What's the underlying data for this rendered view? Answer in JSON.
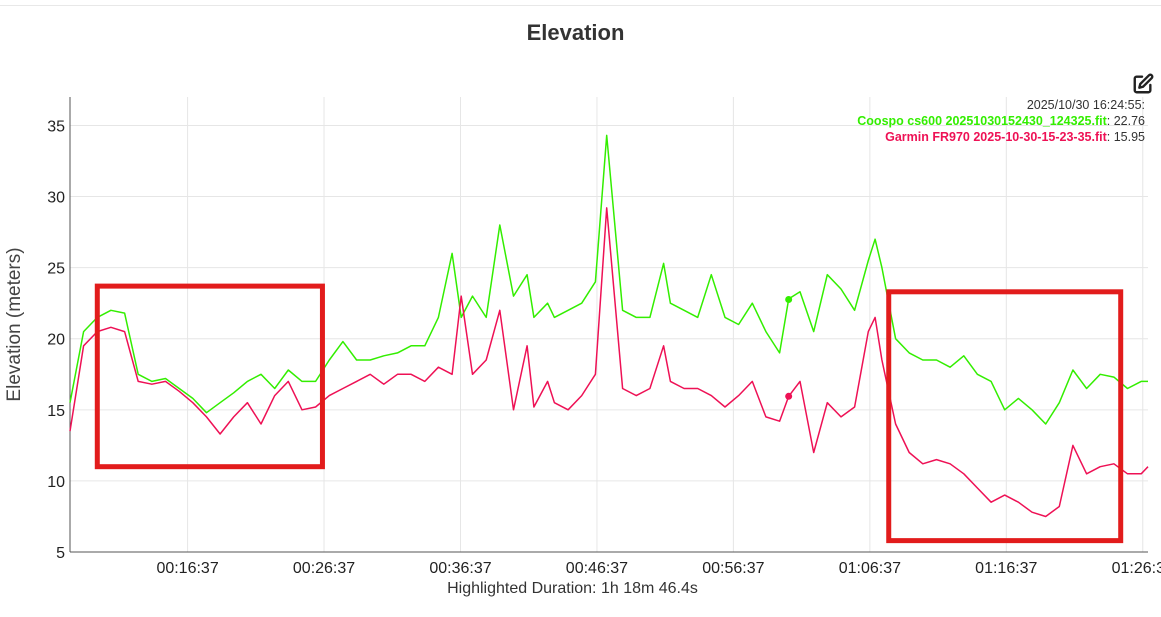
{
  "title": "Elevation",
  "tooltip": {
    "time": "2025/10/30 16:24:55:",
    "series": [
      {
        "name": "Coospo cs600 20251030152430_124325.fit",
        "value": "22.76"
      },
      {
        "name": "Garmin FR970 2025-10-30-15-23-35.fit",
        "value": "15.95"
      }
    ]
  },
  "footer": "Highlighted Duration: 1h 18m 46.4s",
  "icons": {
    "edit": "edit-icon"
  },
  "colors": {
    "series1": "#33ee00",
    "series2": "#ee1155",
    "highlight": "#e21c1c",
    "grid": "#e6e6e6"
  },
  "chart_data": {
    "type": "line",
    "ylabel": "Elevation (meters)",
    "xlabel": "",
    "ylim": [
      5,
      37
    ],
    "yticks": [
      5,
      10,
      15,
      20,
      25,
      30,
      35
    ],
    "xlim": [
      "00:08:00",
      "01:27:00"
    ],
    "xticks": [
      "00:16:37",
      "00:26:37",
      "00:36:37",
      "00:46:37",
      "00:56:37",
      "01:06:37",
      "01:16:37",
      "01:26:37"
    ],
    "grid": true,
    "legend": "top-right tooltip",
    "series": [
      {
        "name": "Coospo cs600 20251030152430_124325.fit",
        "x": [
          "00:08:00",
          "00:09:00",
          "00:10:00",
          "00:11:00",
          "00:12:00",
          "00:13:00",
          "00:14:00",
          "00:15:00",
          "00:16:00",
          "00:17:00",
          "00:18:00",
          "00:19:00",
          "00:20:00",
          "00:21:00",
          "00:22:00",
          "00:23:00",
          "00:24:00",
          "00:25:00",
          "00:26:00",
          "00:27:00",
          "00:28:00",
          "00:29:00",
          "00:30:00",
          "00:31:00",
          "00:32:00",
          "00:33:00",
          "00:34:00",
          "00:35:00",
          "00:36:00",
          "00:36:40",
          "00:37:30",
          "00:38:30",
          "00:39:30",
          "00:40:30",
          "00:41:30",
          "00:42:00",
          "00:43:00",
          "00:43:30",
          "00:44:30",
          "00:45:30",
          "00:46:30",
          "00:47:20",
          "00:48:30",
          "00:49:30",
          "00:50:30",
          "00:51:30",
          "00:52:00",
          "00:53:00",
          "00:54:00",
          "00:55:00",
          "00:56:00",
          "00:57:00",
          "00:58:00",
          "00:59:00",
          "01:00:00",
          "01:00:40",
          "01:01:30",
          "01:02:30",
          "01:03:30",
          "01:04:30",
          "01:05:30",
          "01:06:30",
          "01:07:00",
          "01:07:30",
          "01:08:30",
          "01:09:30",
          "01:10:30",
          "01:11:30",
          "01:12:30",
          "01:13:30",
          "01:14:30",
          "01:15:30",
          "01:16:30",
          "01:17:30",
          "01:18:30",
          "01:19:30",
          "01:20:30",
          "01:21:30",
          "01:22:30",
          "01:23:30",
          "01:24:30",
          "01:25:30",
          "01:26:30",
          "01:27:00"
        ],
        "values": [
          15.5,
          20.5,
          21.5,
          22.0,
          21.8,
          17.5,
          17.0,
          17.2,
          16.5,
          15.8,
          14.8,
          15.5,
          16.2,
          17.0,
          17.5,
          16.5,
          17.8,
          17.0,
          17.0,
          18.5,
          19.8,
          18.5,
          18.5,
          18.8,
          19.0,
          19.5,
          19.5,
          21.5,
          26.0,
          21.5,
          23.0,
          21.5,
          28.0,
          23.0,
          24.5,
          21.5,
          22.5,
          21.5,
          22.0,
          22.5,
          24.0,
          34.3,
          22.0,
          21.5,
          21.5,
          25.3,
          22.5,
          22.0,
          21.5,
          24.5,
          21.5,
          21.0,
          22.5,
          20.5,
          19.0,
          22.8,
          23.3,
          20.5,
          24.5,
          23.5,
          22.0,
          25.5,
          27.0,
          25.0,
          20.0,
          19.0,
          18.5,
          18.5,
          18.0,
          18.8,
          17.5,
          17.0,
          15.0,
          15.8,
          15.0,
          14.0,
          15.5,
          17.8,
          16.5,
          17.5,
          17.3,
          16.5,
          17.0,
          17.0
        ]
      },
      {
        "name": "Garmin FR970 2025-10-30-15-23-35.fit",
        "x": [
          "00:08:00",
          "00:09:00",
          "00:10:00",
          "00:11:00",
          "00:12:00",
          "00:13:00",
          "00:14:00",
          "00:15:00",
          "00:16:00",
          "00:17:00",
          "00:18:00",
          "00:19:00",
          "00:20:00",
          "00:21:00",
          "00:22:00",
          "00:23:00",
          "00:24:00",
          "00:25:00",
          "00:26:00",
          "00:27:00",
          "00:28:00",
          "00:29:00",
          "00:30:00",
          "00:31:00",
          "00:32:00",
          "00:33:00",
          "00:34:00",
          "00:35:00",
          "00:36:00",
          "00:36:40",
          "00:37:30",
          "00:38:30",
          "00:39:30",
          "00:40:30",
          "00:41:30",
          "00:42:00",
          "00:43:00",
          "00:43:30",
          "00:44:30",
          "00:45:30",
          "00:46:30",
          "00:47:20",
          "00:48:30",
          "00:49:30",
          "00:50:30",
          "00:51:30",
          "00:52:00",
          "00:53:00",
          "00:54:00",
          "00:55:00",
          "00:56:00",
          "00:57:00",
          "00:58:00",
          "00:59:00",
          "01:00:00",
          "01:00:40",
          "01:01:30",
          "01:02:30",
          "01:03:30",
          "01:04:30",
          "01:05:30",
          "01:06:30",
          "01:07:00",
          "01:07:30",
          "01:08:30",
          "01:09:30",
          "01:10:30",
          "01:11:30",
          "01:12:30",
          "01:13:30",
          "01:14:30",
          "01:15:30",
          "01:16:30",
          "01:17:30",
          "01:18:30",
          "01:19:30",
          "01:20:30",
          "01:21:30",
          "01:22:30",
          "01:23:30",
          "01:24:30",
          "01:25:30",
          "01:26:30",
          "01:27:00"
        ],
        "values": [
          13.5,
          19.5,
          20.5,
          20.8,
          20.5,
          17.0,
          16.8,
          17.0,
          16.3,
          15.5,
          14.5,
          13.3,
          14.5,
          15.5,
          14.0,
          16.0,
          17.0,
          15.0,
          15.2,
          16.0,
          16.5,
          17.0,
          17.5,
          16.8,
          17.5,
          17.5,
          17.0,
          18.0,
          17.5,
          23.0,
          17.5,
          18.5,
          22.0,
          15.0,
          19.5,
          15.2,
          17.0,
          15.5,
          15.0,
          16.0,
          17.5,
          29.2,
          16.5,
          16.0,
          16.5,
          19.5,
          17.0,
          16.5,
          16.5,
          16.0,
          15.2,
          16.0,
          17.0,
          14.5,
          14.2,
          15.95,
          17.0,
          12.0,
          15.5,
          14.5,
          15.2,
          20.5,
          21.5,
          18.5,
          14.0,
          12.0,
          11.2,
          11.5,
          11.2,
          10.5,
          9.5,
          8.5,
          9.0,
          8.5,
          7.8,
          7.5,
          8.2,
          12.5,
          10.5,
          11.0,
          11.2,
          10.5,
          10.5,
          11.0
        ]
      }
    ],
    "hover_markers": [
      {
        "series": 0,
        "x": "01:00:40",
        "y": 22.76
      },
      {
        "series": 1,
        "x": "01:00:40",
        "y": 15.95
      }
    ],
    "highlight_boxes": [
      {
        "x0": "00:10:00",
        "x1": "00:26:30",
        "y0": 11.0,
        "y1": 23.7
      },
      {
        "x0": "01:08:00",
        "x1": "01:25:00",
        "y0": 5.8,
        "y1": 23.3
      }
    ]
  }
}
